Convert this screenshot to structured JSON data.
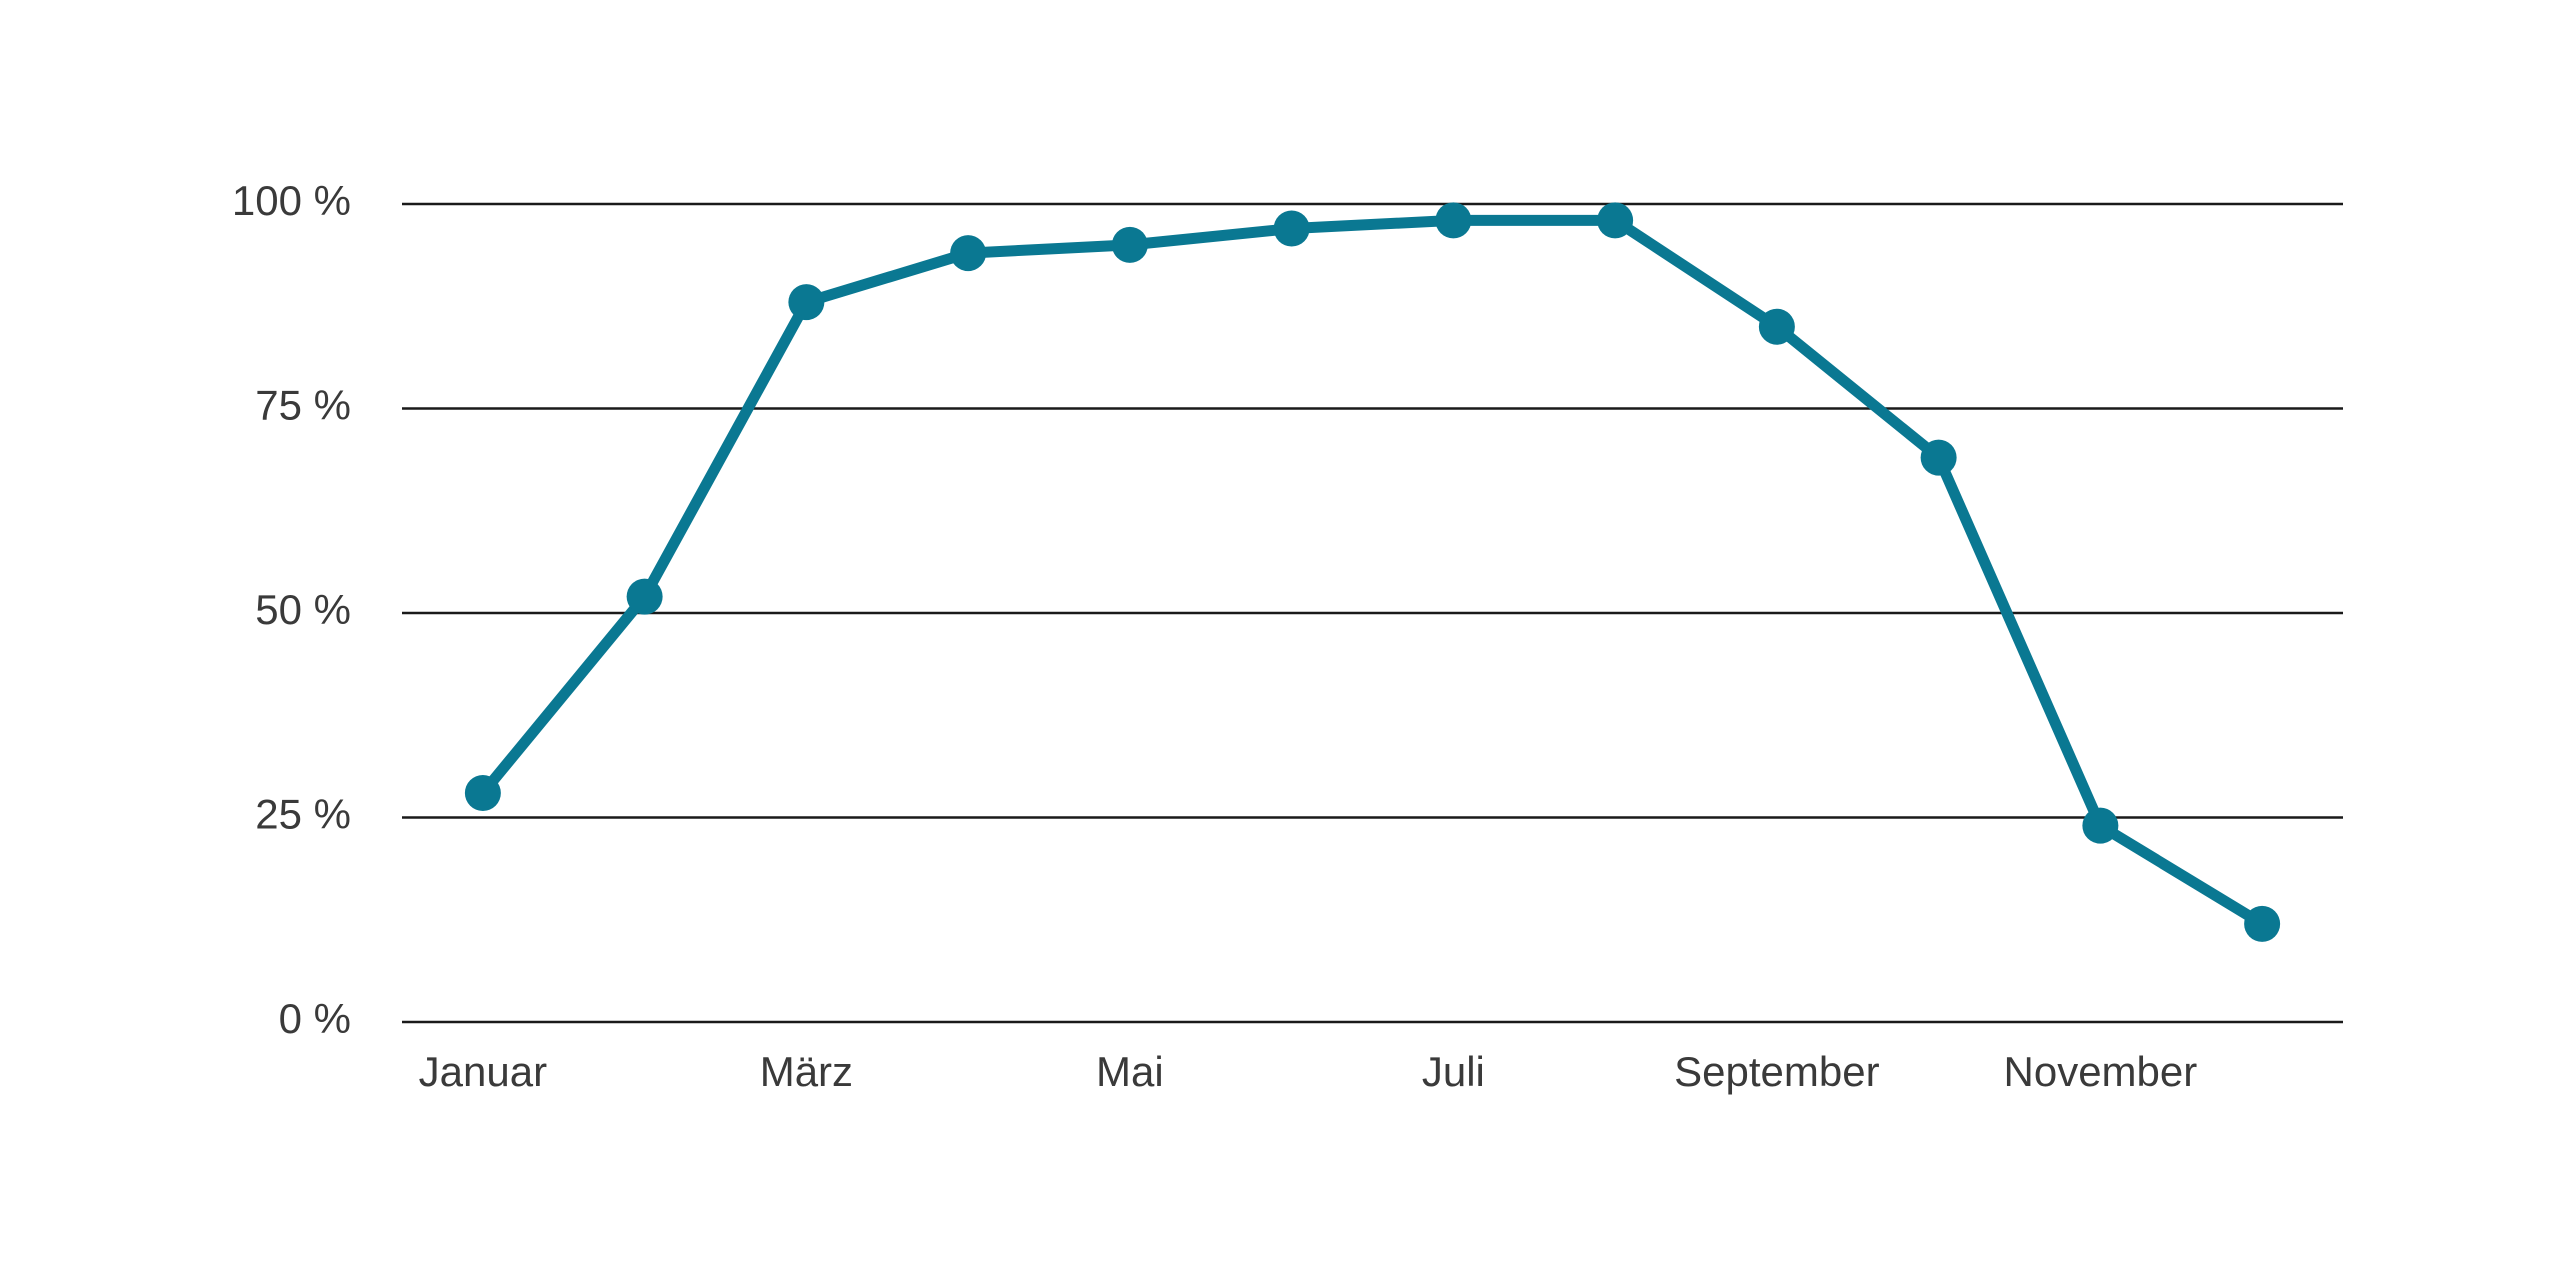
{
  "chart_data": {
    "type": "line",
    "categories": [
      "Januar",
      null,
      "März",
      null,
      "Mai",
      null,
      "Juli",
      null,
      "September",
      null,
      "November",
      null
    ],
    "series": [
      {
        "color": "#0a7892",
        "values": [
          28,
          52,
          88,
          94,
          95,
          97,
          98,
          98,
          85,
          69,
          24,
          12
        ]
      }
    ],
    "ylim": [
      0,
      100
    ],
    "yticks": [
      {
        "value": 0,
        "label": "0 %"
      },
      {
        "value": 25,
        "label": "25 %"
      },
      {
        "value": 50,
        "label": "50 %"
      },
      {
        "value": 75,
        "label": "75 %"
      },
      {
        "value": 100,
        "label": "100 %"
      }
    ],
    "grid": true
  }
}
